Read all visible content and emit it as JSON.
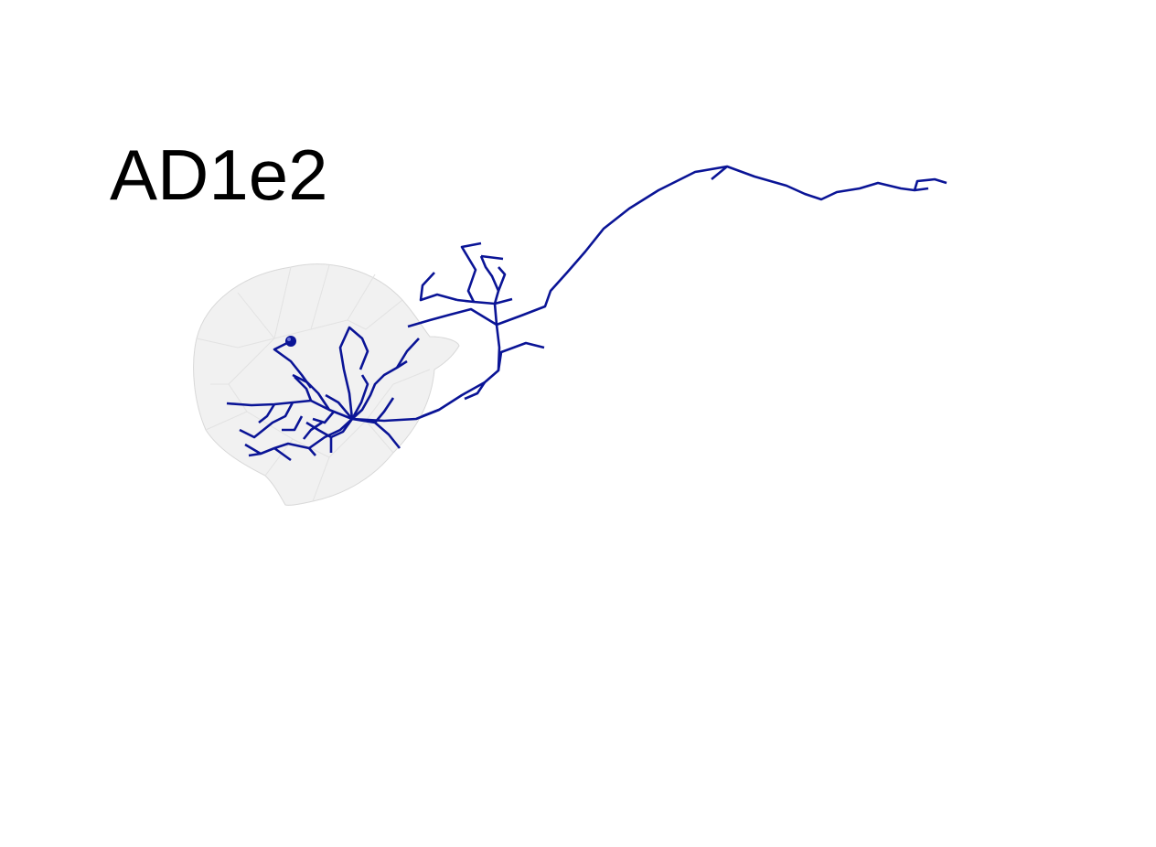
{
  "figure": {
    "label": "AD1e2",
    "neuron_color": "#0a1496",
    "volume_fill": "#ececec",
    "volume_edge": "#d8d8d8",
    "soma_color": "#0a1496"
  }
}
